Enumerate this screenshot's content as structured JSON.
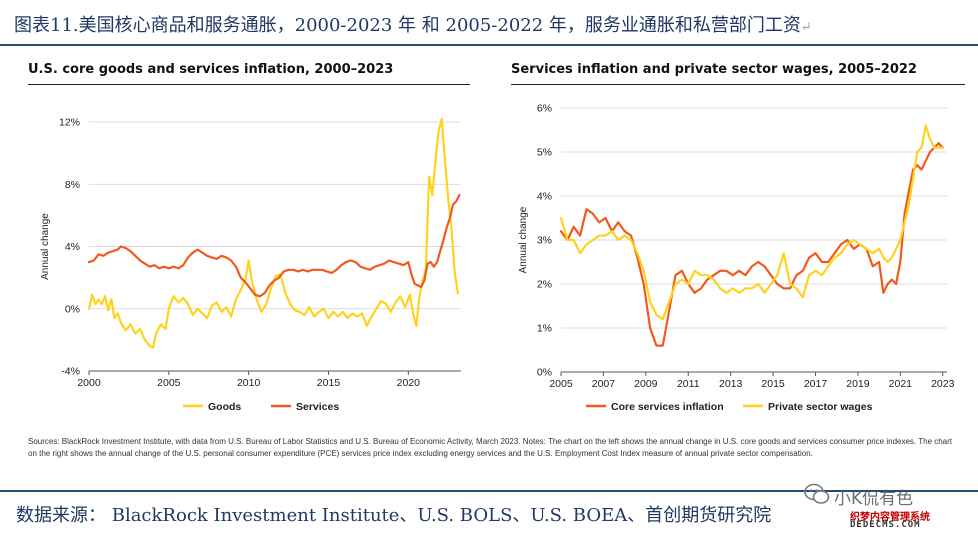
{
  "header": {
    "title": "图表11.美国核心商品和服务通胀，2000-2023 年  和  2005-2022 年，服务业通胀和私营部门工资",
    "return_mark": "↵"
  },
  "colors": {
    "goods": "#ffd21e",
    "services": "#f05a1e",
    "accent": "#1f4e79",
    "grid": "#d0d0d0"
  },
  "chart_data": [
    {
      "type": "line",
      "title": "U.S. core goods and services inflation, 2000–2023",
      "ylabel": "Annual change",
      "xlim": [
        2000,
        2023.3
      ],
      "ylim": [
        -4,
        12
      ],
      "yticks": [
        -4,
        0,
        4,
        8,
        12
      ],
      "ytick_labels": [
        "-4%",
        "0%",
        "4%",
        "8%",
        "12%"
      ],
      "xticks": [
        2000,
        2005,
        2010,
        2015,
        2020
      ],
      "xtick_labels": [
        "2000",
        "2005",
        "2010",
        "2015",
        "2020"
      ],
      "legend_position": "bottom",
      "series": [
        {
          "name": "Goods",
          "color": "#ffd21e",
          "x": [
            2000.0,
            2000.2,
            2000.4,
            2000.6,
            2000.8,
            2001.0,
            2001.2,
            2001.4,
            2001.6,
            2001.8,
            2002.0,
            2002.3,
            2002.6,
            2002.9,
            2003.2,
            2003.5,
            2003.8,
            2004.0,
            2004.2,
            2004.5,
            2004.8,
            2005.0,
            2005.3,
            2005.6,
            2005.9,
            2006.2,
            2006.5,
            2006.8,
            2007.1,
            2007.4,
            2007.7,
            2008.0,
            2008.3,
            2008.6,
            2008.9,
            2009.2,
            2009.5,
            2009.8,
            2010.0,
            2010.2,
            2010.5,
            2010.8,
            2011.1,
            2011.4,
            2011.7,
            2012.0,
            2012.3,
            2012.6,
            2012.9,
            2013.2,
            2013.5,
            2013.8,
            2014.1,
            2014.4,
            2014.7,
            2015.0,
            2015.3,
            2015.6,
            2015.9,
            2016.2,
            2016.5,
            2016.8,
            2017.1,
            2017.4,
            2017.7,
            2018.0,
            2018.3,
            2018.6,
            2018.9,
            2019.2,
            2019.5,
            2019.8,
            2020.1,
            2020.3,
            2020.5,
            2020.7,
            2020.9,
            2021.1,
            2021.3,
            2021.5,
            2021.7,
            2021.9,
            2022.1,
            2022.3,
            2022.5,
            2022.7,
            2022.9,
            2023.1
          ],
          "values": [
            0.0,
            0.9,
            0.3,
            0.6,
            0.3,
            0.8,
            -0.1,
            0.6,
            -0.6,
            -0.3,
            -0.9,
            -1.4,
            -1.0,
            -1.6,
            -1.3,
            -2.0,
            -2.4,
            -2.5,
            -1.6,
            -1.0,
            -1.3,
            0.0,
            0.8,
            0.4,
            0.7,
            0.3,
            -0.4,
            0.0,
            -0.3,
            -0.6,
            0.2,
            0.4,
            -0.2,
            0.1,
            -0.5,
            0.6,
            1.2,
            1.9,
            3.1,
            1.8,
            0.6,
            -0.2,
            0.3,
            1.3,
            2.1,
            2.2,
            1.0,
            0.3,
            -0.1,
            -0.2,
            -0.4,
            0.1,
            -0.5,
            -0.2,
            0.0,
            -0.6,
            -0.2,
            -0.5,
            -0.2,
            -0.6,
            -0.3,
            -0.5,
            -0.3,
            -1.1,
            -0.5,
            0.0,
            0.5,
            0.3,
            -0.2,
            0.4,
            0.8,
            0.1,
            0.9,
            -0.3,
            -1.1,
            0.8,
            1.8,
            2.6,
            8.5,
            7.3,
            9.5,
            11.4,
            12.2,
            9.5,
            7.1,
            5.2,
            2.4,
            1.0
          ]
        },
        {
          "name": "Services",
          "color": "#f05a1e",
          "x": [
            2000.0,
            2000.3,
            2000.6,
            2000.9,
            2001.2,
            2001.5,
            2001.8,
            2002.0,
            2002.3,
            2002.6,
            2002.9,
            2003.2,
            2003.5,
            2003.8,
            2004.1,
            2004.4,
            2004.7,
            2005.0,
            2005.3,
            2005.6,
            2005.9,
            2006.2,
            2006.5,
            2006.8,
            2007.1,
            2007.4,
            2007.7,
            2008.0,
            2008.3,
            2008.6,
            2008.9,
            2009.2,
            2009.5,
            2009.8,
            2010.1,
            2010.4,
            2010.7,
            2011.0,
            2011.3,
            2011.6,
            2011.9,
            2012.2,
            2012.5,
            2012.8,
            2013.1,
            2013.4,
            2013.7,
            2014.0,
            2014.3,
            2014.6,
            2014.9,
            2015.2,
            2015.5,
            2015.8,
            2016.1,
            2016.4,
            2016.7,
            2017.0,
            2017.3,
            2017.6,
            2017.9,
            2018.2,
            2018.5,
            2018.8,
            2019.1,
            2019.4,
            2019.7,
            2020.0,
            2020.2,
            2020.4,
            2020.6,
            2020.8,
            2021.0,
            2021.2,
            2021.4,
            2021.6,
            2021.8,
            2022.0,
            2022.2,
            2022.4,
            2022.6,
            2022.8,
            2023.0,
            2023.2
          ],
          "values": [
            3.0,
            3.1,
            3.5,
            3.4,
            3.6,
            3.7,
            3.8,
            4.0,
            3.9,
            3.7,
            3.4,
            3.1,
            2.9,
            2.7,
            2.8,
            2.6,
            2.7,
            2.6,
            2.7,
            2.6,
            2.8,
            3.3,
            3.6,
            3.8,
            3.6,
            3.4,
            3.3,
            3.2,
            3.4,
            3.3,
            3.1,
            2.7,
            2.0,
            1.7,
            1.3,
            0.9,
            0.8,
            1.0,
            1.5,
            1.8,
            2.0,
            2.4,
            2.5,
            2.5,
            2.4,
            2.5,
            2.4,
            2.5,
            2.5,
            2.5,
            2.4,
            2.3,
            2.5,
            2.8,
            3.0,
            3.1,
            3.0,
            2.7,
            2.6,
            2.5,
            2.7,
            2.8,
            2.9,
            3.1,
            3.0,
            2.9,
            2.8,
            3.0,
            2.2,
            1.6,
            1.5,
            1.4,
            1.8,
            2.9,
            3.0,
            2.7,
            3.0,
            3.7,
            4.4,
            5.2,
            5.8,
            6.7,
            6.9,
            7.3
          ]
        }
      ]
    },
    {
      "type": "line",
      "title": "Services inflation and private sector wages, 2005–2022",
      "ylabel": "Annual change",
      "xlim": [
        2005,
        2023.2
      ],
      "ylim": [
        0,
        6
      ],
      "yticks": [
        0,
        1,
        2,
        3,
        4,
        5,
        6
      ],
      "ytick_labels": [
        "0%",
        "1%",
        "2%",
        "3%",
        "4%",
        "5%",
        "6%"
      ],
      "xticks": [
        2005,
        2007,
        2009,
        2011,
        2013,
        2015,
        2017,
        2019,
        2021,
        2023
      ],
      "xtick_labels": [
        "2005",
        "2007",
        "2009",
        "2011",
        "2013",
        "2015",
        "2017",
        "2019",
        "2021",
        "2023"
      ],
      "legend_position": "bottom",
      "series": [
        {
          "name": "Core services inflation",
          "color": "#f05a1e",
          "x": [
            2005.0,
            2005.3,
            2005.6,
            2005.9,
            2006.2,
            2006.5,
            2006.8,
            2007.1,
            2007.4,
            2007.7,
            2008.0,
            2008.3,
            2008.6,
            2008.9,
            2009.2,
            2009.5,
            2009.8,
            2010.1,
            2010.4,
            2010.7,
            2011.0,
            2011.3,
            2011.6,
            2011.9,
            2012.2,
            2012.5,
            2012.8,
            2013.1,
            2013.4,
            2013.7,
            2014.0,
            2014.3,
            2014.6,
            2014.9,
            2015.2,
            2015.5,
            2015.8,
            2016.1,
            2016.4,
            2016.7,
            2017.0,
            2017.3,
            2017.6,
            2017.9,
            2018.2,
            2018.5,
            2018.8,
            2019.1,
            2019.4,
            2019.7,
            2020.0,
            2020.2,
            2020.4,
            2020.6,
            2020.8,
            2021.0,
            2021.2,
            2021.4,
            2021.6,
            2021.8,
            2022.0,
            2022.2,
            2022.4,
            2022.6,
            2022.8,
            2023.0
          ],
          "values": [
            3.2,
            3.0,
            3.3,
            3.1,
            3.7,
            3.6,
            3.4,
            3.5,
            3.2,
            3.4,
            3.2,
            3.1,
            2.6,
            2.0,
            1.0,
            0.6,
            0.6,
            1.4,
            2.2,
            2.3,
            2.0,
            1.8,
            1.9,
            2.1,
            2.2,
            2.3,
            2.3,
            2.2,
            2.3,
            2.2,
            2.4,
            2.5,
            2.4,
            2.2,
            2.0,
            1.9,
            1.9,
            2.2,
            2.3,
            2.6,
            2.7,
            2.5,
            2.5,
            2.7,
            2.9,
            3.0,
            2.8,
            2.9,
            2.8,
            2.4,
            2.5,
            1.8,
            2.0,
            2.1,
            2.0,
            2.5,
            3.6,
            4.1,
            4.6,
            4.7,
            4.6,
            4.8,
            5.0,
            5.1,
            5.2,
            5.1
          ]
        },
        {
          "name": "Private sector wages",
          "color": "#ffd21e",
          "x": [
            2005.0,
            2005.3,
            2005.6,
            2005.9,
            2006.2,
            2006.5,
            2006.8,
            2007.1,
            2007.4,
            2007.7,
            2008.0,
            2008.3,
            2008.6,
            2008.9,
            2009.2,
            2009.5,
            2009.8,
            2010.1,
            2010.4,
            2010.7,
            2011.0,
            2011.3,
            2011.6,
            2011.9,
            2012.2,
            2012.5,
            2012.8,
            2013.1,
            2013.4,
            2013.7,
            2014.0,
            2014.3,
            2014.6,
            2014.9,
            2015.2,
            2015.5,
            2015.8,
            2016.1,
            2016.4,
            2016.7,
            2017.0,
            2017.3,
            2017.6,
            2017.9,
            2018.2,
            2018.5,
            2018.8,
            2019.1,
            2019.4,
            2019.7,
            2020.0,
            2020.2,
            2020.4,
            2020.6,
            2020.8,
            2021.0,
            2021.2,
            2021.4,
            2021.6,
            2021.8,
            2022.0,
            2022.2,
            2022.4,
            2022.6,
            2022.8,
            2023.0
          ],
          "values": [
            3.5,
            3.0,
            3.0,
            2.7,
            2.9,
            3.0,
            3.1,
            3.1,
            3.2,
            3.0,
            3.1,
            3.0,
            2.7,
            2.3,
            1.6,
            1.3,
            1.2,
            1.6,
            2.0,
            2.1,
            2.0,
            2.3,
            2.2,
            2.2,
            2.1,
            1.9,
            1.8,
            1.9,
            1.8,
            1.9,
            1.9,
            2.0,
            1.8,
            2.0,
            2.2,
            2.7,
            2.0,
            1.9,
            1.7,
            2.2,
            2.3,
            2.2,
            2.4,
            2.6,
            2.7,
            2.9,
            3.0,
            2.9,
            2.8,
            2.7,
            2.8,
            2.6,
            2.5,
            2.6,
            2.8,
            3.0,
            3.4,
            3.8,
            4.4,
            5.0,
            5.1,
            5.6,
            5.3,
            5.1,
            5.1,
            5.1
          ]
        }
      ]
    }
  ],
  "sources_text": "Sources: BlackRock Investment Institute, with data from U.S. Bureau of Labor Statistics and U.S. Bureau of Economic Activity, March 2023. Notes: The chart on the left shows the annual change in U.S. core goods and services consumer price indexes. The chart on the right shows the annual change of the U.S. personal consumer expenditure (PCE) services price index excluding energy services and the U.S. Employment Cost Index measure of annual private sector compensation.",
  "footer": {
    "text": "数据来源：  BlackRock Investment Institute、U.S. BOLS、U.S. BOEA、首创期货研究院"
  },
  "watermark": {
    "name": "小K侃有色",
    "site": "织梦内容管理系统",
    "url": "DEDECMS.COM"
  }
}
